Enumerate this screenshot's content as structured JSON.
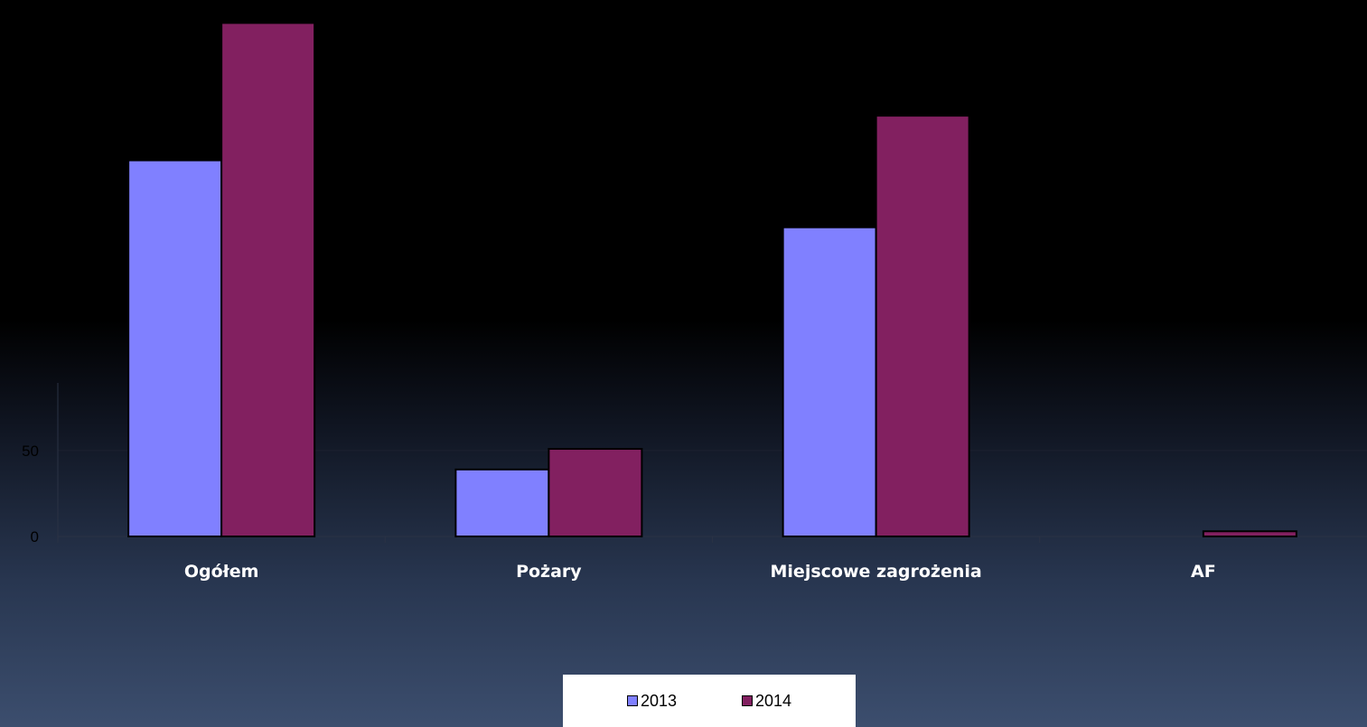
{
  "chart_data": {
    "type": "bar",
    "categories": [
      "Ogółem",
      "Pożary",
      "Miejscowe zagrożenia",
      "AF"
    ],
    "series": [
      {
        "name": "2013",
        "values": [
          219,
          39,
          180,
          0
        ],
        "color": "#8080ff"
      },
      {
        "name": "2014",
        "values": [
          299,
          51,
          245,
          3
        ],
        "color": "#822060"
      }
    ],
    "y_ticks": [
      0,
      50
    ],
    "ylim": [
      0,
      305
    ],
    "grid": true,
    "legend_position": "bottom"
  }
}
